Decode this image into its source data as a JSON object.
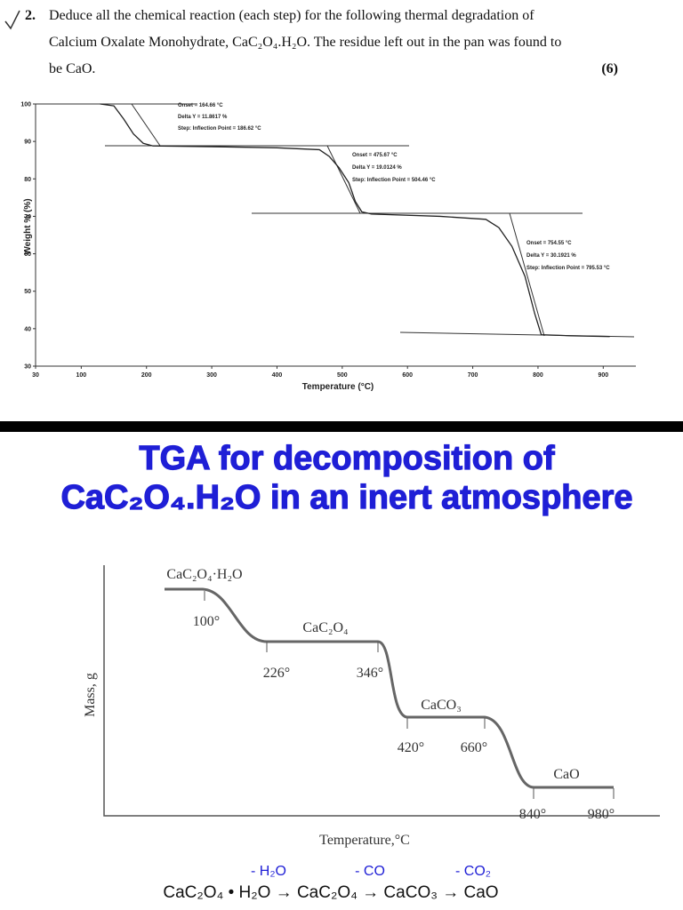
{
  "question": {
    "number": "2.",
    "lines": [
      "Deduce all the chemical reaction (each step) for the following thermal degradation of",
      "Calcium Oxalate Monohydrate, CaC₂O₄.H₂O. The residue left out in the pan was found to",
      "be CaO."
    ],
    "marks": "(6)"
  },
  "chart_data": {
    "type": "line",
    "xlabel": "Temperature (°C)",
    "ylabel": "Weight % (%)",
    "color": "#222222",
    "x": [
      129,
      150,
      165,
      180,
      195,
      210,
      300,
      400,
      465,
      480,
      495,
      510,
      520,
      530,
      545,
      650,
      720,
      740,
      760,
      780,
      795,
      805,
      850,
      910
    ],
    "values": [
      100,
      99.5,
      96,
      92,
      89.5,
      88.8,
      88.6,
      88.3,
      87.8,
      86,
      83,
      79,
      74,
      71.2,
      70.6,
      70,
      69.2,
      67,
      62,
      54,
      44,
      38.4,
      38.1,
      37.9
    ],
    "xlim": [
      30,
      950
    ],
    "xticks": [
      30,
      100,
      200,
      300,
      400,
      500,
      600,
      700,
      800,
      900
    ],
    "ylim": [
      30,
      100
    ],
    "yticks": [
      30,
      40,
      50,
      60,
      70,
      80,
      90,
      100
    ],
    "annotations": [
      "Onset = 164.66 °C",
      "Delta Y = 11.8617 %",
      "Step: Inflection Point = 186.62 °C",
      "Onset = 475.67 °C",
      "Delta Y = 19.0124 %",
      "Step: Inflection Point = 504.46 °C",
      "Onset = 754.55 °C",
      "Delta Y = 30.1921 %",
      "Step: Inflection Point = 795.53 °C"
    ]
  },
  "slide": {
    "title_lines": [
      "TGA for decomposition of",
      "CaC₂O₄.H₂O in an inert atmosphere"
    ],
    "ylabel": "Mass, g",
    "xlabel": "Temperature,°C",
    "species": [
      "CaC₂O₄·H₂O",
      "CaC₂O₄",
      "CaCO₃",
      "CaO"
    ],
    "temperatures": [
      "100°",
      "226°",
      "346°",
      "420°",
      "660°",
      "840°",
      "980°"
    ],
    "losses": [
      "- H₂O",
      "- CO",
      "- CO₂"
    ],
    "equation": "CaC₂O₄ • H₂O → CaC₂O₄ → CaCO₃ → CaO"
  }
}
